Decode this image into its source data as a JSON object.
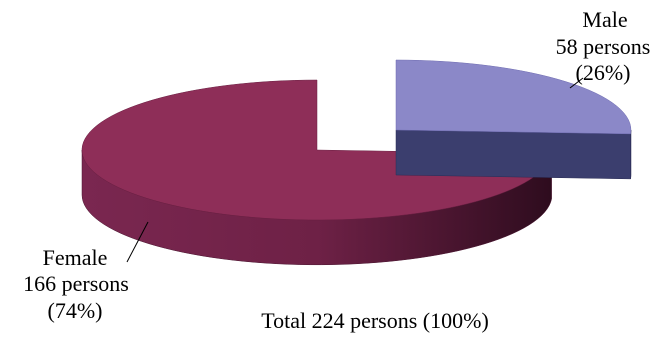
{
  "chart_data": {
    "type": "pie",
    "title": "",
    "style": "3d-exploded",
    "slices": [
      {
        "name": "Male",
        "value": 58,
        "percent": 26,
        "count_label": "58 persons",
        "percent_label": "(26%)",
        "color_top": "#8b88c8",
        "color_side": "#3b3e6e"
      },
      {
        "name": "Female",
        "value": 166,
        "percent": 74,
        "count_label": "166 persons",
        "percent_label": "(74%)",
        "color_top": "#8e2e58",
        "color_side": "#5a1a38"
      }
    ],
    "total_label": "Total  224 persons (100%)"
  }
}
